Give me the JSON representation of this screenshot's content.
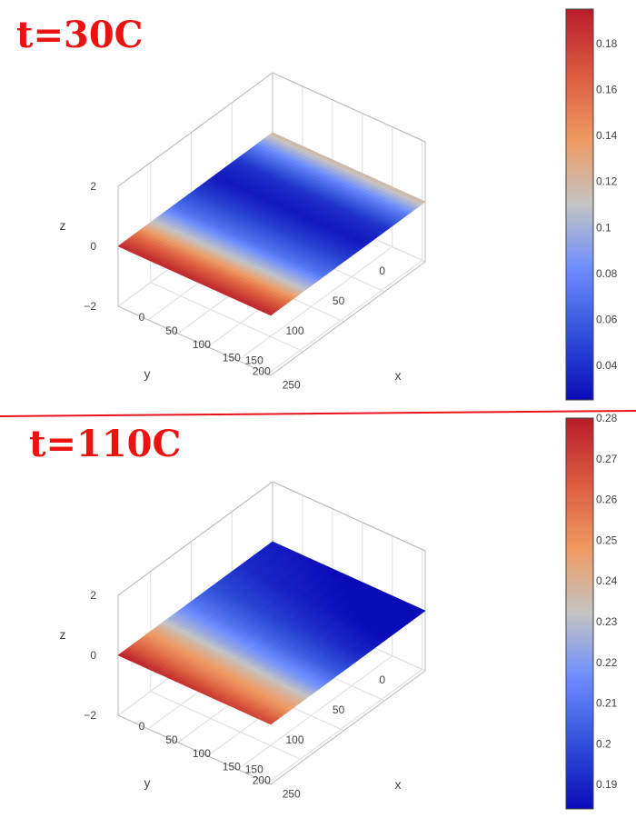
{
  "divider_color": "#e8141b",
  "title_color": "#ee1111",
  "colorscale": [
    "#0b0cb8",
    "#2f4fd9",
    "#6b8cff",
    "#c4c4c4",
    "#ef9a62",
    "#db5b3f",
    "#b81c2b"
  ],
  "chart_data": [
    {
      "type": "surface",
      "title": "t=30C",
      "xlabel": "x",
      "ylabel": "y",
      "zlabel": "z",
      "xticks": [
        "0",
        "50",
        "100",
        "150",
        "200",
        "250"
      ],
      "yticks": [
        "0",
        "50",
        "100",
        "150"
      ],
      "zticks": [
        "−2",
        "0",
        "2"
      ],
      "xlim": [
        0,
        255
      ],
      "ylim": [
        0,
        190
      ],
      "zlim": [
        -2,
        2
      ],
      "colorbar": {
        "range": [
          0.025,
          0.195
        ],
        "ticks": [
          "0.04",
          "0.06",
          "0.08",
          "0.1",
          "0.12",
          "0.14",
          "0.16",
          "0.18"
        ],
        "tick_values": [
          0.04,
          0.06,
          0.08,
          0.1,
          0.12,
          0.14,
          0.16,
          0.18
        ]
      },
      "surface": {
        "description": "nearly flat sheet at z≈0; value highest along y=0 edge and lowest in middle",
        "y_profile": [
          [
            0,
            0.19
          ],
          [
            0.1,
            0.16
          ],
          [
            0.22,
            0.11
          ],
          [
            0.35,
            0.07
          ],
          [
            0.5,
            0.045
          ],
          [
            0.62,
            0.03
          ],
          [
            0.75,
            0.04
          ],
          [
            0.88,
            0.075
          ],
          [
            1,
            0.12
          ]
        ],
        "x_effect": 0.0
      }
    },
    {
      "type": "surface",
      "title": "t=110C",
      "xlabel": "x",
      "ylabel": "y",
      "zlabel": "z",
      "xticks": [
        "0",
        "50",
        "100",
        "150",
        "200",
        "250"
      ],
      "yticks": [
        "0",
        "50",
        "100",
        "150"
      ],
      "zticks": [
        "−2",
        "0",
        "2"
      ],
      "xlim": [
        0,
        255
      ],
      "ylim": [
        0,
        190
      ],
      "zlim": [
        -2,
        2
      ],
      "colorbar": {
        "range": [
          0.184,
          0.28
        ],
        "ticks": [
          "0.19",
          "0.2",
          "0.21",
          "0.22",
          "0.23",
          "0.24",
          "0.25",
          "0.26",
          "0.27",
          "0.28"
        ],
        "tick_values": [
          0.19,
          0.2,
          0.21,
          0.22,
          0.23,
          0.24,
          0.25,
          0.26,
          0.27,
          0.28
        ]
      },
      "surface": {
        "description": "nearly flat sheet at z≈0; value highest along y=0 edge, decreasing toward far corner",
        "y_profile": [
          [
            0,
            0.279
          ],
          [
            0.1,
            0.262
          ],
          [
            0.22,
            0.245
          ],
          [
            0.32,
            0.228
          ],
          [
            0.45,
            0.212
          ],
          [
            0.6,
            0.2
          ],
          [
            0.78,
            0.192
          ],
          [
            1,
            0.188
          ]
        ],
        "x_effect": -0.01
      }
    }
  ]
}
